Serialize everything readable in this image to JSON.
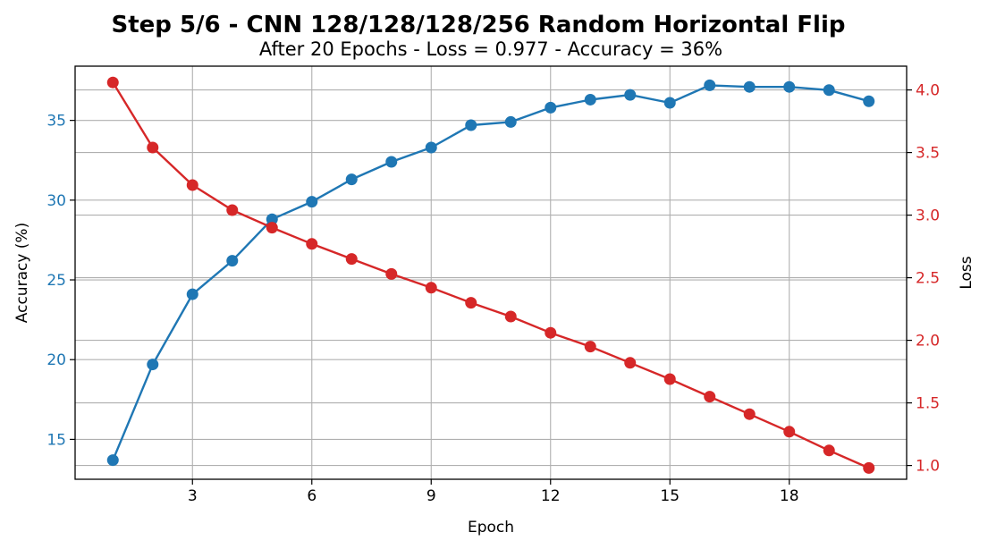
{
  "chart_data": {
    "type": "line",
    "title": "Step 5/6 - CNN 128/128/128/256 Random Horizontal Flip",
    "subtitle": "After 20 Epochs - Loss = 0.977 - Accuracy = 36%",
    "xlabel": "Epoch",
    "ylabel_left": "Accuracy (%)",
    "ylabel_right": "Loss",
    "x": [
      1,
      2,
      3,
      4,
      5,
      6,
      7,
      8,
      9,
      10,
      11,
      12,
      13,
      14,
      15,
      16,
      17,
      18,
      19,
      20
    ],
    "x_ticks": [
      3,
      6,
      9,
      12,
      15,
      18
    ],
    "xlim": [
      0.05,
      20.95
    ],
    "grid": true,
    "series": [
      {
        "axis": "left",
        "color": "#1f77b4",
        "values": [
          13.7,
          19.7,
          24.1,
          26.2,
          28.8,
          29.9,
          31.3,
          32.4,
          33.3,
          34.7,
          34.9,
          35.8,
          36.3,
          36.6,
          36.1,
          37.2,
          37.1,
          37.1,
          36.9,
          36.2
        ]
      },
      {
        "axis": "right",
        "color": "#d62728",
        "values": [
          4.06,
          3.54,
          3.24,
          3.04,
          2.9,
          2.77,
          2.65,
          2.53,
          2.42,
          2.3,
          2.19,
          2.06,
          1.95,
          1.82,
          1.69,
          1.55,
          1.41,
          1.27,
          1.12,
          0.98
        ]
      }
    ],
    "left_axis": {
      "ylim": [
        12.5,
        38.4
      ],
      "ticks": [
        15,
        20,
        25,
        30,
        35
      ],
      "color": "#1f77b4"
    },
    "right_axis": {
      "ylim": [
        0.89,
        4.19
      ],
      "ticks": [
        1.0,
        1.5,
        2.0,
        2.5,
        3.0,
        3.5,
        4.0
      ],
      "tick_labels": [
        "1.0",
        "1.5",
        "2.0",
        "2.5",
        "3.0",
        "3.5",
        "4.0"
      ],
      "color": "#d62728"
    }
  }
}
